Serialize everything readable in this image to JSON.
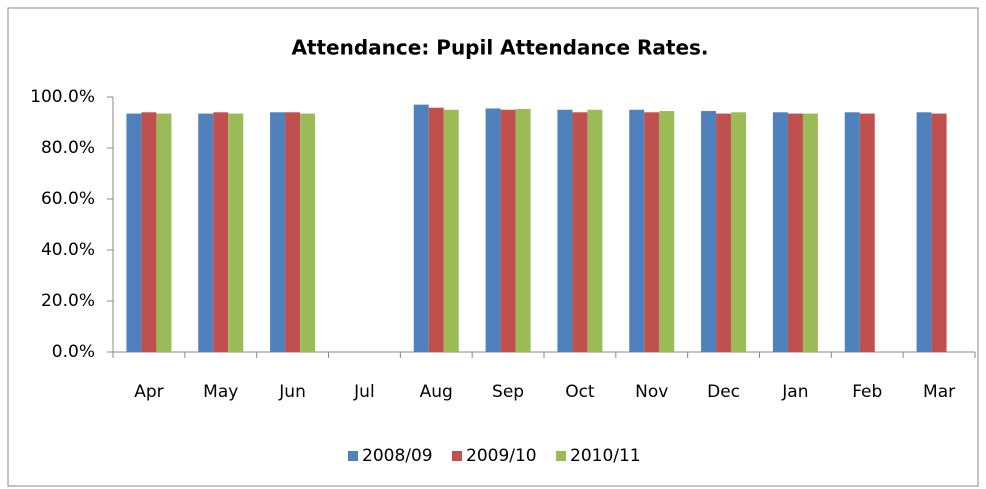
{
  "chart_data": {
    "type": "bar",
    "title": "Attendance: Pupil Attendance Rates.",
    "categories": [
      "Apr",
      "May",
      "Jun",
      "Jul",
      "Aug",
      "Sep",
      "Oct",
      "Nov",
      "Dec",
      "Jan",
      "Feb",
      "Mar"
    ],
    "series": [
      {
        "name": "2008/09",
        "color": "#4f81bd",
        "values": [
          93.5,
          93.5,
          94,
          null,
          97,
          95.5,
          95,
          95,
          94.5,
          94,
          94,
          94
        ]
      },
      {
        "name": "2009/10",
        "color": "#c0504d",
        "values": [
          94,
          94,
          94,
          null,
          95.8,
          95,
          94,
          94,
          93.5,
          93.5,
          93.5,
          93.5
        ]
      },
      {
        "name": "2010/11",
        "color": "#9bbb59",
        "values": [
          93.5,
          93.5,
          93.5,
          null,
          95,
          95.3,
          95,
          94.5,
          94,
          93.5,
          null,
          null
        ]
      }
    ],
    "ylim": [
      0,
      100
    ],
    "yticks": [
      {
        "value": 0,
        "label": "0.0%"
      },
      {
        "value": 20,
        "label": "20.0%"
      },
      {
        "value": 40,
        "label": "40.0%"
      },
      {
        "value": 60,
        "label": "60.0%"
      },
      {
        "value": 80,
        "label": "80.0%"
      },
      {
        "value": 100,
        "label": "100.0%"
      }
    ],
    "grid": false,
    "legend": "bottom"
  }
}
